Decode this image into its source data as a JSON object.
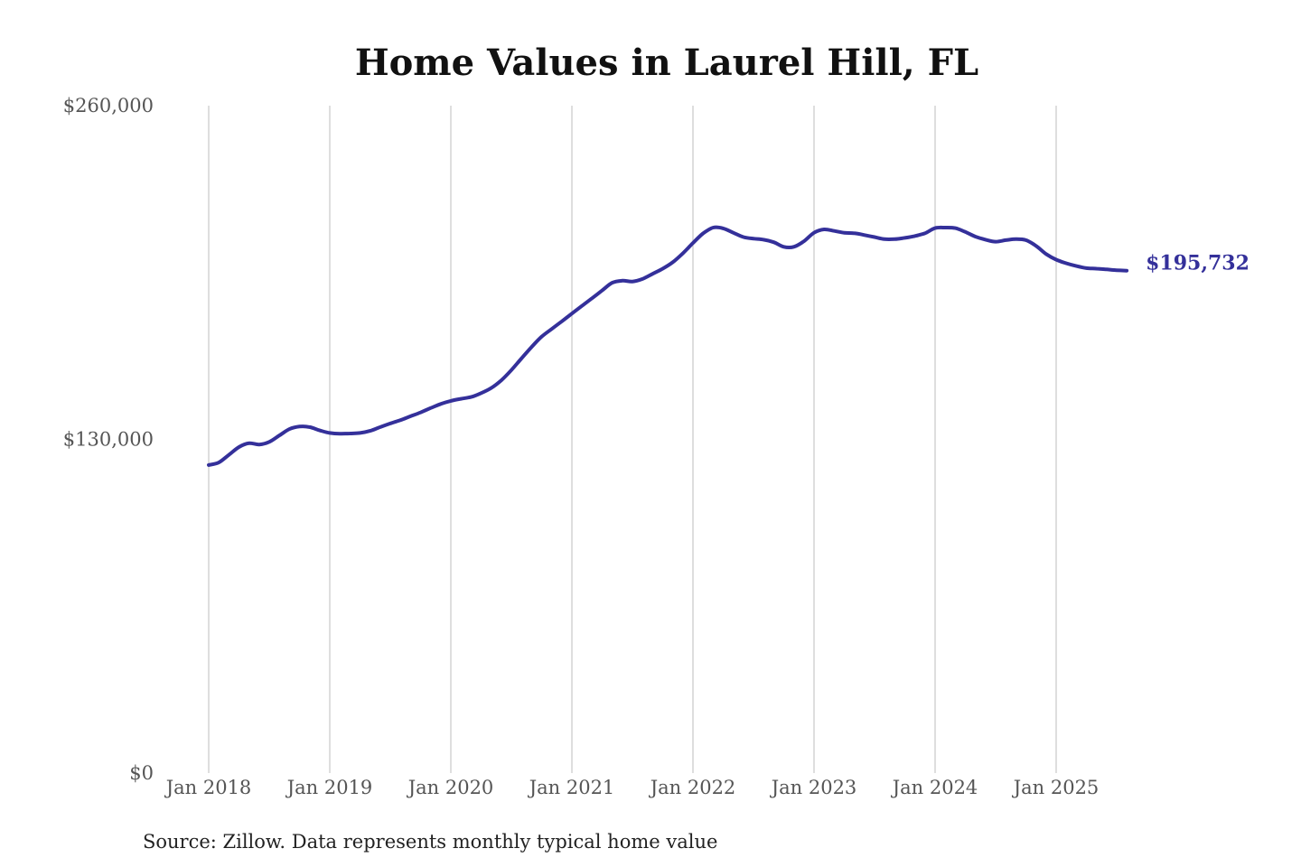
{
  "chart_data": {
    "type": "line",
    "title": "Home Values in Laurel Hill, FL",
    "xlabel": "",
    "ylabel": "",
    "ylim": [
      0,
      260000
    ],
    "y_ticks": [
      {
        "value": 0,
        "label": "$0"
      },
      {
        "value": 130000,
        "label": "$130,000"
      },
      {
        "value": 260000,
        "label": "$260,000"
      }
    ],
    "x_ticks": [
      {
        "value": 2018.0,
        "label": "Jan 2018"
      },
      {
        "value": 2019.0,
        "label": "Jan 2019"
      },
      {
        "value": 2020.0,
        "label": "Jan 2020"
      },
      {
        "value": 2021.0,
        "label": "Jan 2021"
      },
      {
        "value": 2022.0,
        "label": "Jan 2022"
      },
      {
        "value": 2023.0,
        "label": "Jan 2023"
      },
      {
        "value": 2024.0,
        "label": "Jan 2024"
      },
      {
        "value": 2025.0,
        "label": "Jan 2025"
      }
    ],
    "xlim": [
      2018.0,
      2025.583
    ],
    "grid": "vertical",
    "legend": "none",
    "line_color": "#34309a",
    "series": [
      {
        "x": [
          2018.0,
          2018.083,
          2018.167,
          2018.25,
          2018.333,
          2018.417,
          2018.5,
          2018.583,
          2018.667,
          2018.75,
          2018.833,
          2018.917,
          2019.0,
          2019.083,
          2019.167,
          2019.25,
          2019.333,
          2019.417,
          2019.5,
          2019.583,
          2019.667,
          2019.75,
          2019.833,
          2019.917,
          2020.0,
          2020.083,
          2020.167,
          2020.25,
          2020.333,
          2020.417,
          2020.5,
          2020.583,
          2020.667,
          2020.75,
          2020.833,
          2020.917,
          2021.0,
          2021.083,
          2021.167,
          2021.25,
          2021.333,
          2021.417,
          2021.5,
          2021.583,
          2021.667,
          2021.75,
          2021.833,
          2021.917,
          2022.0,
          2022.083,
          2022.167,
          2022.25,
          2022.333,
          2022.417,
          2022.5,
          2022.583,
          2022.667,
          2022.75,
          2022.833,
          2022.917,
          2023.0,
          2023.083,
          2023.167,
          2023.25,
          2023.333,
          2023.417,
          2023.5,
          2023.583,
          2023.667,
          2023.75,
          2023.833,
          2023.917,
          2024.0,
          2024.083,
          2024.167,
          2024.25,
          2024.333,
          2024.417,
          2024.5,
          2024.583,
          2024.667,
          2024.75,
          2024.833,
          2024.917,
          2025.0,
          2025.083,
          2025.167,
          2025.25,
          2025.333,
          2025.417,
          2025.5,
          2025.583
        ],
        "values": [
          120000,
          121000,
          124000,
          127000,
          128500,
          128000,
          129000,
          131500,
          134000,
          135000,
          134800,
          133500,
          132500,
          132200,
          132300,
          132500,
          133300,
          134800,
          136200,
          137500,
          139000,
          140500,
          142200,
          143800,
          145000,
          145800,
          146500,
          148000,
          150000,
          153000,
          157000,
          161500,
          166000,
          170000,
          173000,
          176000,
          179000,
          182000,
          185000,
          188000,
          191000,
          191800,
          191500,
          192500,
          194500,
          196500,
          199000,
          202500,
          206500,
          210200,
          212500,
          212200,
          210500,
          208800,
          208200,
          207800,
          206800,
          205000,
          205000,
          207200,
          210500,
          211800,
          211200,
          210500,
          210300,
          209600,
          208800,
          208000,
          208000,
          208500,
          209200,
          210300,
          212300,
          212500,
          212300,
          210800,
          209000,
          207800,
          207000,
          207600,
          208000,
          207600,
          205400,
          202200,
          200000,
          198600,
          197500,
          196700,
          196500,
          196200,
          195900,
          195732
        ],
        "end_label": "$195,732"
      }
    ]
  },
  "source_note": "Source: Zillow. Data represents monthly typical home value"
}
